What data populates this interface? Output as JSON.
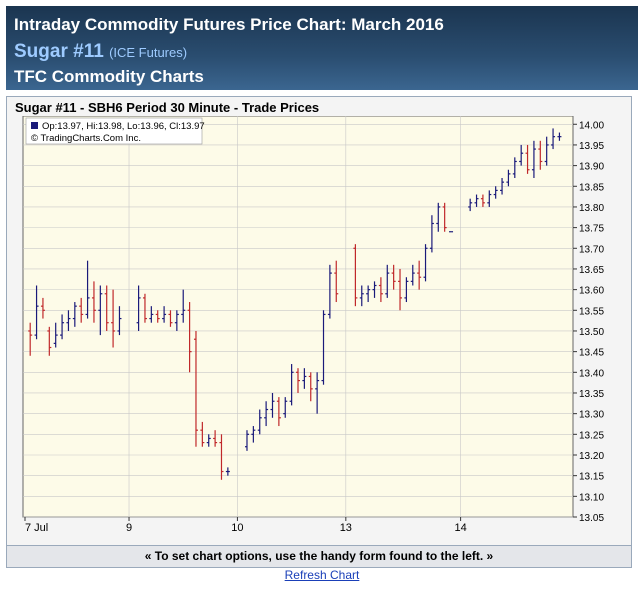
{
  "header": {
    "title": "Intraday Commodity Futures Price Chart: March 2016",
    "commodity": "Sugar #11",
    "exchange": "(ICE Futures)",
    "subtitle": "TFC Commodity Charts"
  },
  "footer": {
    "note": "« To set chart options, use the handy form found to the left. »",
    "refresh_link": "Refresh Chart"
  },
  "colors": {
    "up": "#1a1a7a",
    "down": "#c0282a",
    "plot_bg": "#fdfbe8",
    "grid": "#c8c8c8"
  },
  "chart_data": {
    "type": "ohlc",
    "title": "Sugar #11 - SBH6 Period 30 Minute - Trade Prices",
    "legend": [
      "Op:13.97, Hi:13.98, Lo:13.96, Cl:13.97",
      "© TradingCharts.Com Inc."
    ],
    "x_tick_labels": [
      "7 Jul",
      "9",
      "10",
      "13",
      "14"
    ],
    "y_ticks": [
      "14.00",
      "13.95",
      "13.90",
      "13.85",
      "13.80",
      "13.75",
      "13.70",
      "13.65",
      "13.60",
      "13.55",
      "13.50",
      "13.45",
      "13.40",
      "13.35",
      "13.30",
      "13.25",
      "13.20",
      "13.15",
      "13.10",
      "13.05"
    ],
    "ylim": [
      13.05,
      14.02
    ],
    "grid": true,
    "y_axis_side": "right",
    "sessions": [
      {
        "label": "7 Jul",
        "bars": [
          [
            13.5,
            13.52,
            13.44,
            13.49
          ],
          [
            13.49,
            13.61,
            13.48,
            13.56
          ],
          [
            13.56,
            13.58,
            13.53,
            13.55
          ],
          [
            13.5,
            13.51,
            13.44,
            13.46
          ],
          [
            13.47,
            13.52,
            13.46,
            13.49
          ],
          [
            13.49,
            13.54,
            13.48,
            13.52
          ],
          [
            13.52,
            13.55,
            13.5,
            13.53
          ],
          [
            13.53,
            13.57,
            13.51,
            13.56
          ],
          [
            13.56,
            13.58,
            13.52,
            13.54
          ],
          [
            13.54,
            13.67,
            13.53,
            13.58
          ],
          [
            13.58,
            13.62,
            13.52,
            13.55
          ],
          [
            13.55,
            13.61,
            13.49,
            13.59
          ],
          [
            13.59,
            13.61,
            13.5,
            13.52
          ],
          [
            13.52,
            13.6,
            13.46,
            13.5
          ],
          [
            13.5,
            13.56,
            13.49,
            13.53
          ]
        ]
      },
      {
        "label": "9",
        "bars": [
          [
            13.52,
            13.61,
            13.5,
            13.58
          ],
          [
            13.58,
            13.59,
            13.52,
            13.53
          ],
          [
            13.53,
            13.56,
            13.52,
            13.54
          ],
          [
            13.54,
            13.55,
            13.52,
            13.53
          ],
          [
            13.53,
            13.56,
            13.52,
            13.54
          ],
          [
            13.54,
            13.55,
            13.51,
            13.52
          ],
          [
            13.52,
            13.55,
            13.5,
            13.54
          ],
          [
            13.54,
            13.6,
            13.52,
            13.55
          ],
          [
            13.55,
            13.57,
            13.4,
            13.45
          ],
          [
            13.48,
            13.5,
            13.22,
            13.26
          ],
          [
            13.26,
            13.28,
            13.22,
            13.23
          ],
          [
            13.23,
            13.25,
            13.22,
            13.24
          ],
          [
            13.24,
            13.26,
            13.22,
            13.23
          ],
          [
            13.23,
            13.25,
            13.14,
            13.16
          ],
          [
            13.16,
            13.17,
            13.15,
            13.16
          ]
        ]
      },
      {
        "label": "10",
        "bars": [
          [
            13.22,
            13.26,
            13.21,
            13.25
          ],
          [
            13.25,
            13.27,
            13.23,
            13.26
          ],
          [
            13.26,
            13.31,
            13.25,
            13.29
          ],
          [
            13.29,
            13.33,
            13.27,
            13.31
          ],
          [
            13.31,
            13.35,
            13.29,
            13.33
          ],
          [
            13.33,
            13.34,
            13.27,
            13.29
          ],
          [
            13.3,
            13.34,
            13.29,
            13.33
          ],
          [
            13.33,
            13.42,
            13.32,
            13.4
          ],
          [
            13.4,
            13.41,
            13.35,
            13.38
          ],
          [
            13.38,
            13.41,
            13.36,
            13.39
          ],
          [
            13.39,
            13.4,
            13.33,
            13.36
          ],
          [
            13.36,
            13.4,
            13.3,
            13.38
          ],
          [
            13.38,
            13.55,
            13.37,
            13.54
          ],
          [
            13.54,
            13.66,
            13.53,
            13.64
          ],
          [
            13.64,
            13.67,
            13.57,
            13.59
          ]
        ]
      },
      {
        "label": "13",
        "bars": [
          [
            13.7,
            13.71,
            13.56,
            13.58
          ],
          [
            13.58,
            13.61,
            13.56,
            13.59
          ],
          [
            13.59,
            13.61,
            13.57,
            13.6
          ],
          [
            13.6,
            13.62,
            13.58,
            13.61
          ],
          [
            13.61,
            13.63,
            13.57,
            13.59
          ],
          [
            13.59,
            13.66,
            13.58,
            13.64
          ],
          [
            13.64,
            13.66,
            13.6,
            13.62
          ],
          [
            13.62,
            13.65,
            13.55,
            13.58
          ],
          [
            13.58,
            13.63,
            13.57,
            13.62
          ],
          [
            13.62,
            13.66,
            13.61,
            13.64
          ],
          [
            13.64,
            13.67,
            13.6,
            13.63
          ],
          [
            13.63,
            13.71,
            13.62,
            13.7
          ],
          [
            13.7,
            13.78,
            13.69,
            13.76
          ],
          [
            13.76,
            13.81,
            13.74,
            13.8
          ],
          [
            13.8,
            13.81,
            13.74,
            13.75
          ],
          [
            13.74,
            13.74,
            13.74,
            13.74
          ]
        ]
      },
      {
        "label": "14",
        "bars": [
          [
            13.8,
            13.82,
            13.79,
            13.81
          ],
          [
            13.81,
            13.83,
            13.8,
            13.82
          ],
          [
            13.82,
            13.83,
            13.8,
            13.81
          ],
          [
            13.81,
            13.84,
            13.8,
            13.83
          ],
          [
            13.83,
            13.85,
            13.82,
            13.84
          ],
          [
            13.84,
            13.87,
            13.83,
            13.86
          ],
          [
            13.86,
            13.89,
            13.85,
            13.88
          ],
          [
            13.88,
            13.92,
            13.87,
            13.91
          ],
          [
            13.91,
            13.95,
            13.9,
            13.93
          ],
          [
            13.93,
            13.95,
            13.88,
            13.89
          ],
          [
            13.89,
            13.96,
            13.87,
            13.94
          ],
          [
            13.94,
            13.96,
            13.89,
            13.91
          ],
          [
            13.91,
            13.97,
            13.9,
            13.95
          ],
          [
            13.95,
            13.99,
            13.94,
            13.97
          ],
          [
            13.97,
            13.98,
            13.96,
            13.97
          ]
        ]
      }
    ]
  }
}
